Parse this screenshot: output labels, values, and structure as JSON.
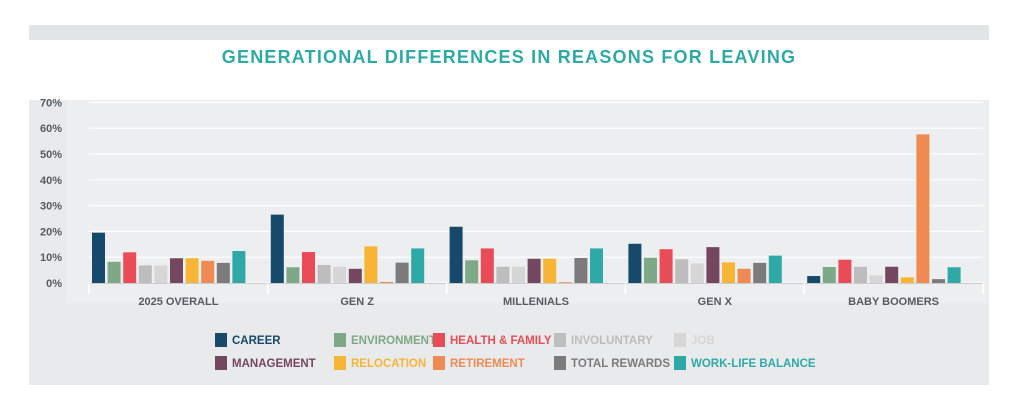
{
  "chart_data": {
    "type": "bar",
    "title": "GENERATIONAL DIFFERENCES IN REASONS FOR LEAVING",
    "xlabel": "",
    "ylabel": "",
    "ylim": [
      0,
      70
    ],
    "y_ticks": [
      "0%",
      "10%",
      "20%",
      "30%",
      "40%",
      "50%",
      "60%",
      "70%"
    ],
    "y_tick_values": [
      0,
      10,
      20,
      30,
      40,
      50,
      60,
      70
    ],
    "grid": true,
    "legend_position": "bottom",
    "categories": [
      "2025 OVERALL",
      "GEN Z",
      "MILLENIALS",
      "GEN X",
      "BABY BOOMERS"
    ],
    "series": [
      {
        "name": "CAREER",
        "color": "#17496b",
        "values": [
          19.5,
          26.5,
          21.8,
          15.2,
          2.7
        ]
      },
      {
        "name": "ENVIRONMENT",
        "color": "#7fa886",
        "values": [
          8.2,
          6.1,
          8.8,
          9.8,
          6.2
        ]
      },
      {
        "name": "HEALTH & FAMILY",
        "color": "#e94c56",
        "values": [
          11.9,
          12.0,
          13.4,
          13.1,
          9.0
        ]
      },
      {
        "name": "INVOLUNTARY",
        "color": "#bdbdbd",
        "values": [
          6.8,
          7.0,
          6.3,
          9.2,
          6.3
        ]
      },
      {
        "name": "JOB",
        "color": "#d6d6d6",
        "values": [
          6.8,
          6.3,
          6.3,
          7.6,
          3.0
        ]
      },
      {
        "name": "MANAGEMENT",
        "color": "#75465f",
        "values": [
          9.6,
          5.5,
          9.4,
          13.9,
          6.3
        ]
      },
      {
        "name": "RELOCATION",
        "color": "#f7b535",
        "values": [
          9.6,
          14.2,
          9.4,
          8.0,
          2.2
        ]
      },
      {
        "name": "RETIREMENT",
        "color": "#ef8a52",
        "values": [
          8.6,
          0.4,
          0.3,
          5.5,
          57.6
        ]
      },
      {
        "name": "TOTAL REWARDS",
        "color": "#7b7b7b",
        "values": [
          7.8,
          7.9,
          9.7,
          7.8,
          1.5
        ]
      },
      {
        "name": "WORK-LIFE BALANCE",
        "color": "#2fa9a7",
        "values": [
          12.4,
          13.4,
          13.4,
          10.6,
          6.1
        ]
      }
    ]
  }
}
